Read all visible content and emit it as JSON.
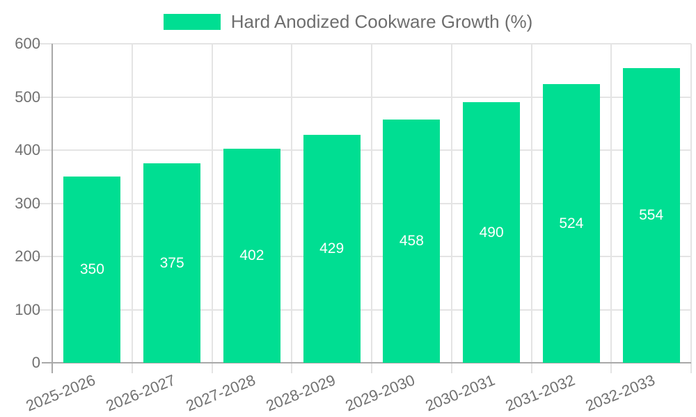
{
  "legend": {
    "series_label": "Hard Anodized Cookware Growth (%)"
  },
  "colors": {
    "bar": "#00de92",
    "grid": "#e4e4e4",
    "axis": "#a8a8a8",
    "text_gray": "#717171",
    "value_label": "#ffffff"
  },
  "chart_data": {
    "type": "bar",
    "title": "Hard Anodized Cookware Growth (%)",
    "series_name": "Hard Anodized Cookware Growth (%)",
    "categories": [
      "2025-2026",
      "2026-2027",
      "2027-2028",
      "2028-2029",
      "2029-2030",
      "2030-2031",
      "2031-2032",
      "2032-2033"
    ],
    "values": [
      350,
      375,
      402,
      429,
      458,
      490,
      524,
      554
    ],
    "value_labels": [
      "350",
      "375",
      "402",
      "429",
      "458",
      "490",
      "524",
      "554"
    ],
    "xlabel": "",
    "ylabel": "",
    "ylim": [
      0,
      600
    ],
    "yticks": [
      0,
      100,
      200,
      300,
      400,
      500,
      600
    ],
    "grid": true,
    "legend_position": "top",
    "bar_color": "#00de92",
    "value_label_position": "center-inside"
  }
}
